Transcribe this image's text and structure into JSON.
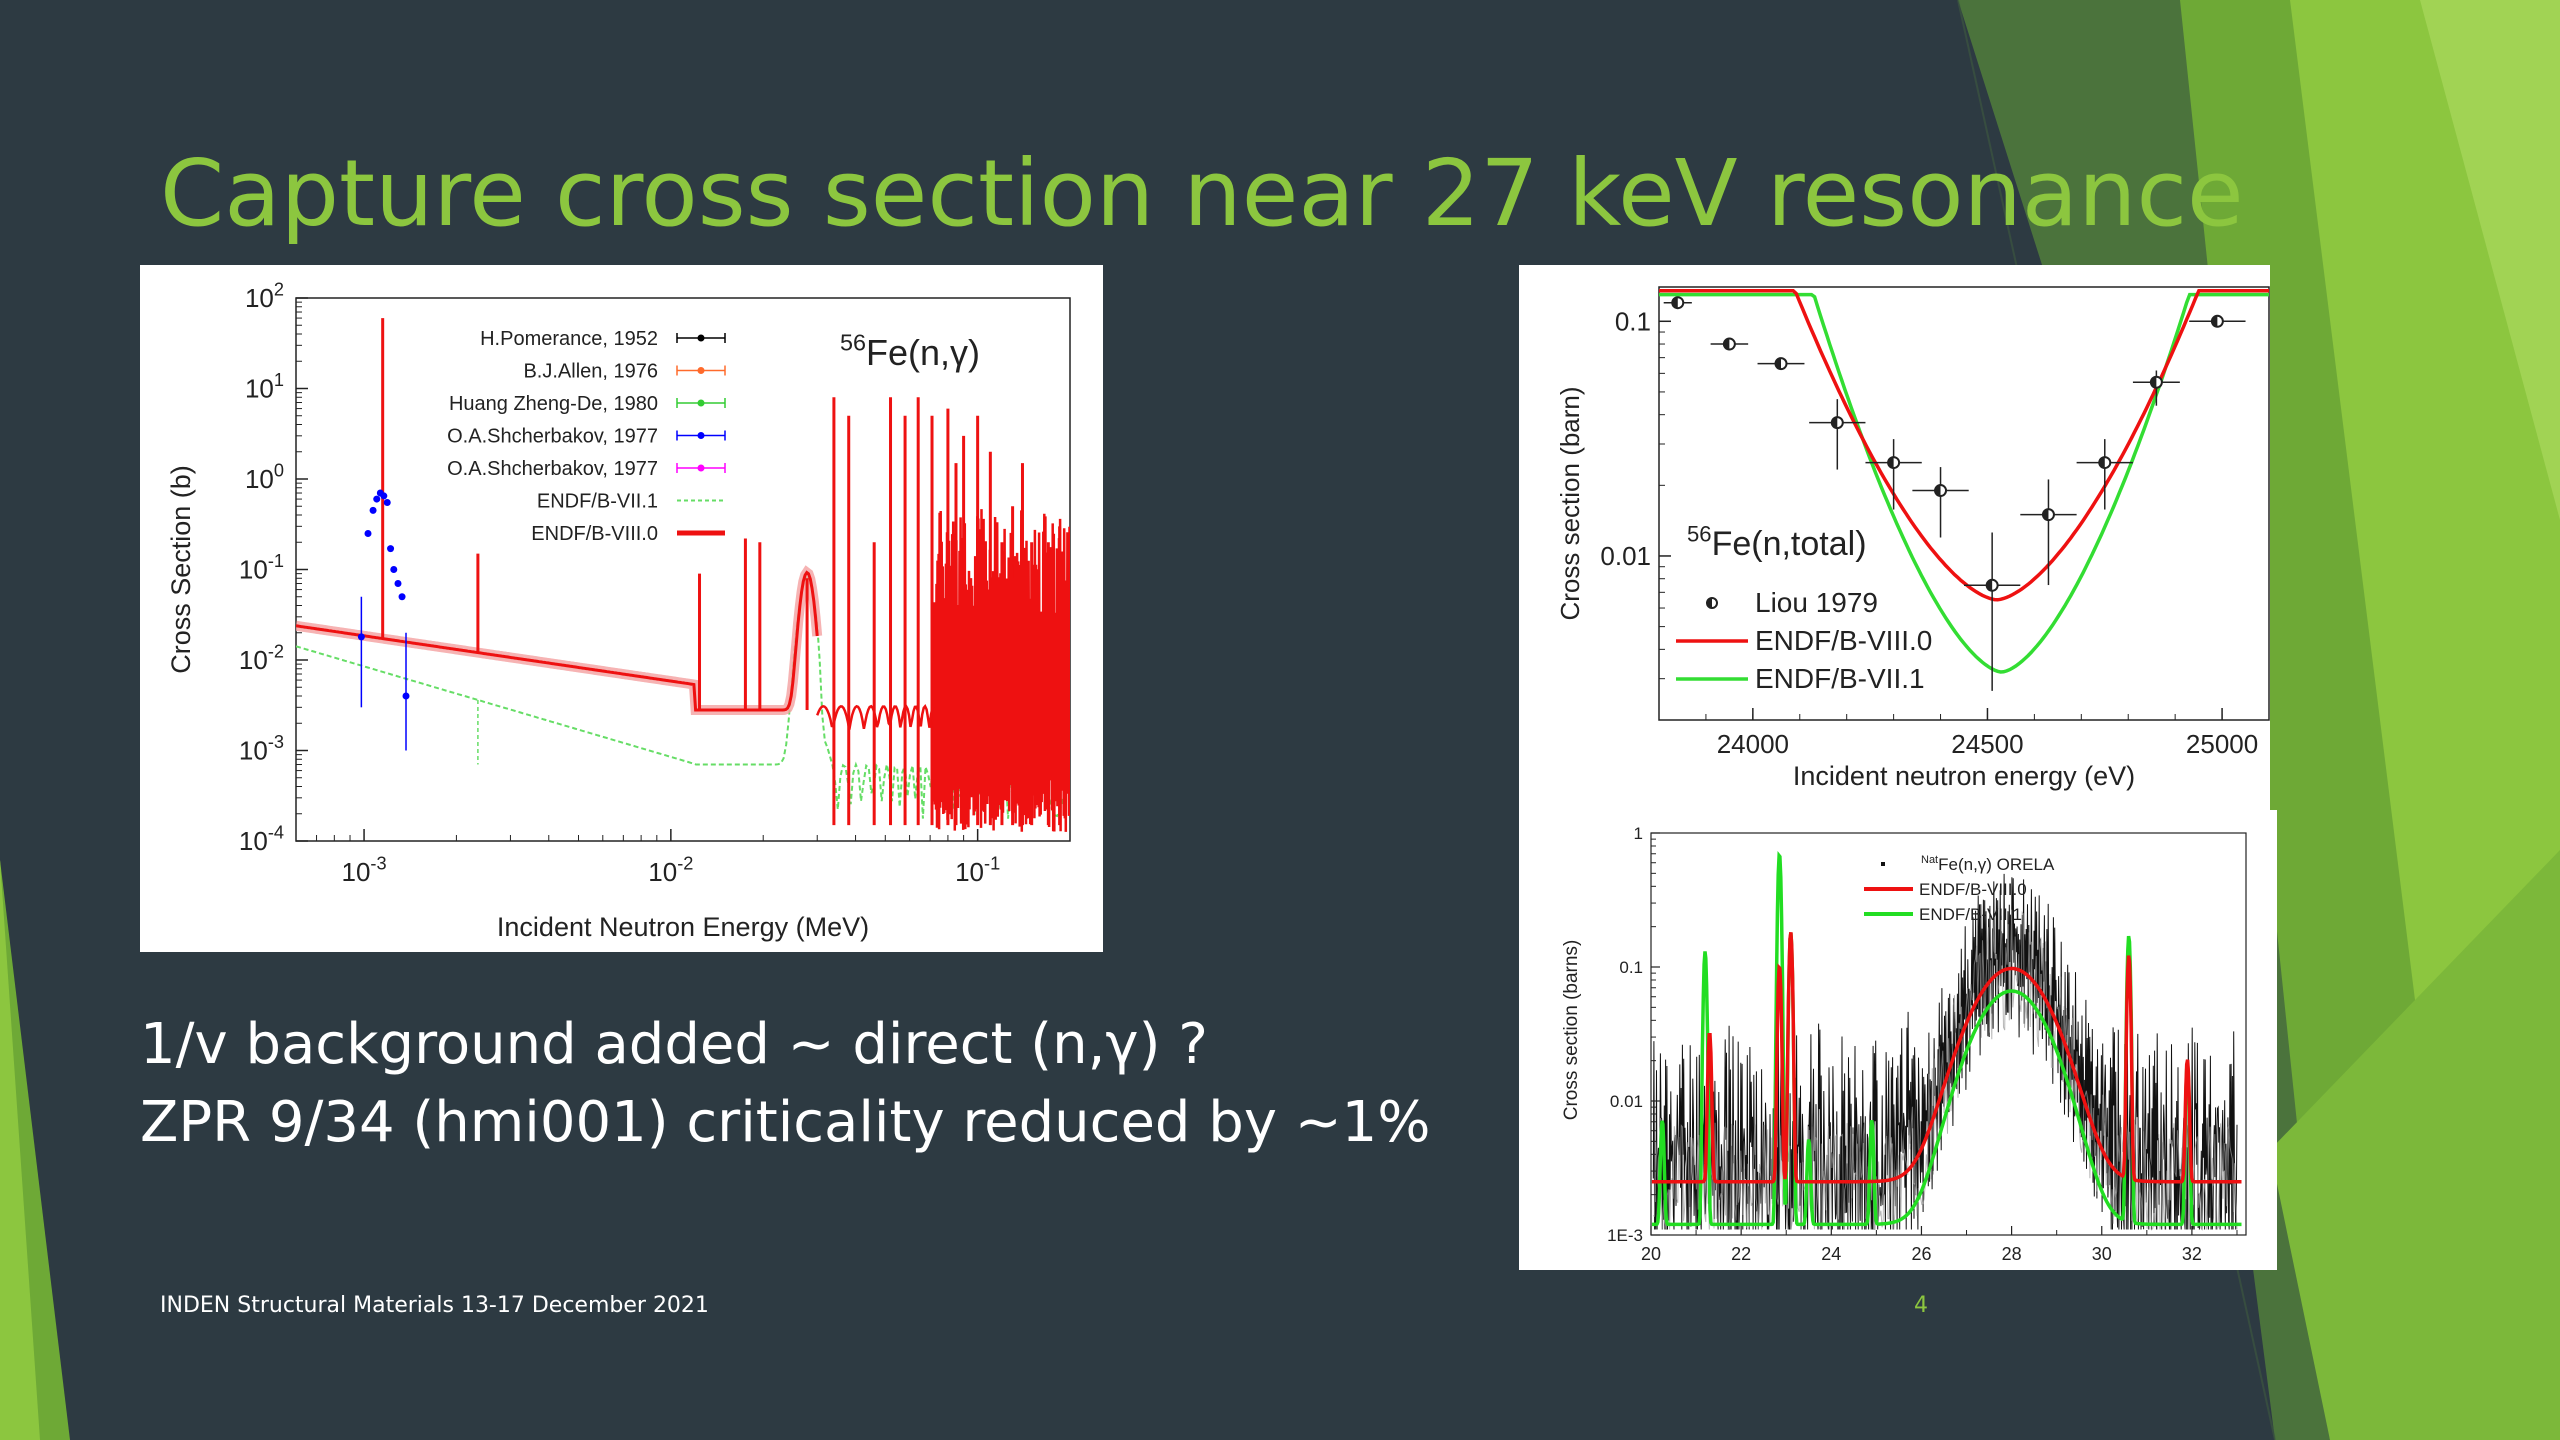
{
  "slide": {
    "title": "Capture cross section near 27 keV resonance",
    "bullets": [
      "1/v background added ~ direct (n,γ) ?",
      "ZPR 9/34 (hmi001) criticality reduced by ~1%"
    ],
    "footer": "INDEN Structural Materials 13-17 December 2021",
    "page_number": "4",
    "colors": {
      "background": "#2d3a42",
      "accent": "#8cc63f",
      "text": "#ffffff"
    }
  },
  "chart_data": [
    {
      "type": "line",
      "reaction_label": "56Fe(n,γ)",
      "xlabel": "Incident Neutron Energy (MeV)",
      "ylabel": "Cross Section (b)",
      "x_scale": "log",
      "y_scale": "log",
      "xlim": [
        0.0006,
        0.2
      ],
      "ylim": [
        0.0001,
        100
      ],
      "x_ticks": [
        {
          "value": 0.001,
          "base": "10",
          "exp": "-3"
        },
        {
          "value": 0.01,
          "base": "10",
          "exp": "-2"
        },
        {
          "value": 0.1,
          "base": "10",
          "exp": "-1"
        }
      ],
      "y_ticks": [
        {
          "value": 100,
          "base": "10",
          "exp": "2"
        },
        {
          "value": 10,
          "base": "10",
          "exp": "1"
        },
        {
          "value": 1,
          "base": "10",
          "exp": "0"
        },
        {
          "value": 0.1,
          "base": "10",
          "exp": "-1"
        },
        {
          "value": 0.01,
          "base": "10",
          "exp": "-2"
        },
        {
          "value": 0.001,
          "base": "10",
          "exp": "-3"
        },
        {
          "value": 0.0001,
          "base": "10",
          "exp": "-4"
        }
      ],
      "legend_position": "top-left",
      "legend": [
        {
          "name": "H.Pomerance, 1952",
          "color": "#000000",
          "kind": "points"
        },
        {
          "name": "B.J.Allen, 1976",
          "color": "#ff6a2b",
          "kind": "points"
        },
        {
          "name": "Huang Zheng-De, 1980",
          "color": "#33cc33",
          "kind": "points"
        },
        {
          "name": "O.A.Shcherbakov, 1977",
          "color": "#0000ff",
          "kind": "points"
        },
        {
          "name": "O.A.Shcherbakov, 1977",
          "color": "#ff00ff",
          "kind": "points"
        },
        {
          "name": "ENDF/B-VII.1",
          "color": "#66dd66",
          "kind": "dashed"
        },
        {
          "name": "ENDF/B-VIII.0",
          "color": "#ee1111",
          "kind": "line"
        }
      ],
      "series": [
        {
          "name": "ENDF/B-VIII.0",
          "color": "#ee1111",
          "background": {
            "x_ref": 0.001,
            "y_ref": 0.0185,
            "slope": -0.5,
            "plateau_x": 0.012,
            "plateau_y": 0.0028
          },
          "resonances": [
            {
              "x": 0.00115,
              "y": 60
            },
            {
              "x": 0.00235,
              "y": 0.15
            },
            {
              "x": 0.0124,
              "y": 0.09
            },
            {
              "x": 0.0175,
              "y": 0.22
            },
            {
              "x": 0.0195,
              "y": 0.2
            },
            {
              "x": 0.0278,
              "y": 0.08
            },
            {
              "x": 0.034,
              "y": 8
            },
            {
              "x": 0.038,
              "y": 5
            },
            {
              "x": 0.046,
              "y": 0.2
            },
            {
              "x": 0.052,
              "y": 8
            },
            {
              "x": 0.058,
              "y": 5
            },
            {
              "x": 0.064,
              "y": 8
            },
            {
              "x": 0.071,
              "y": 5
            },
            {
              "x": 0.08,
              "y": 6
            },
            {
              "x": 0.085,
              "y": 1.5
            },
            {
              "x": 0.09,
              "y": 3
            },
            {
              "x": 0.1,
              "y": 5
            },
            {
              "x": 0.11,
              "y": 2
            },
            {
              "x": 0.12,
              "y": 0.2
            },
            {
              "x": 0.13,
              "y": 0.5
            },
            {
              "x": 0.14,
              "y": 1.5
            },
            {
              "x": 0.15,
              "y": 0.2
            },
            {
              "x": 0.17,
              "y": 0.2
            },
            {
              "x": 0.185,
              "y": 0.3
            }
          ]
        },
        {
          "name": "ENDF/B-VII.1",
          "color": "#66dd66",
          "background": {
            "x_ref": 0.001,
            "y_ref": 0.0085,
            "slope": -1.0,
            "plateau_x": 0.012,
            "plateau_y": 0.0007
          }
        },
        {
          "name": "O.A.Shcherbakov, 1977",
          "color": "#0000ff",
          "points": [
            {
              "x": 0.00098,
              "y": 0.018,
              "lo": 0.003,
              "hi": 0.05
            },
            {
              "x": 0.00103,
              "y": 0.25
            },
            {
              "x": 0.00107,
              "y": 0.45
            },
            {
              "x": 0.0011,
              "y": 0.6
            },
            {
              "x": 0.00113,
              "y": 0.7
            },
            {
              "x": 0.00116,
              "y": 0.65
            },
            {
              "x": 0.00119,
              "y": 0.55
            },
            {
              "x": 0.00122,
              "y": 0.17
            },
            {
              "x": 0.00125,
              "y": 0.1
            },
            {
              "x": 0.00129,
              "y": 0.07
            },
            {
              "x": 0.00133,
              "y": 0.05
            },
            {
              "x": 0.00137,
              "y": 0.004,
              "lo": 0.001,
              "hi": 0.02
            }
          ]
        }
      ]
    },
    {
      "type": "line",
      "reaction_label": "56Fe(n,total)",
      "xlabel": "Incident neutron energy (eV)",
      "ylabel": "Cross section (barn)",
      "y_scale": "log",
      "xlim": [
        23800,
        25100
      ],
      "ylim": [
        0.002,
        0.14
      ],
      "x_ticks": [
        {
          "value": 24000,
          "label": "24000"
        },
        {
          "value": 24500,
          "label": "24500"
        },
        {
          "value": 25000,
          "label": "25000"
        }
      ],
      "y_ticks": [
        {
          "value": 0.1,
          "label": "0.1"
        },
        {
          "value": 0.01,
          "label": "0.01"
        }
      ],
      "legend_position": "bottom-left",
      "legend": [
        {
          "name": "Liou 1979",
          "color": "#000000",
          "kind": "points"
        },
        {
          "name": "ENDF/B-VIII.0",
          "color": "#ee1111",
          "kind": "line"
        },
        {
          "name": "ENDF/B-VII.1",
          "color": "#33dd33",
          "kind": "line"
        }
      ],
      "series": [
        {
          "name": "ENDF/B-VIII.0",
          "color": "#ee1111",
          "dip": {
            "x0": 24520,
            "min": 0.0065,
            "base": 0.135,
            "width": 430
          }
        },
        {
          "name": "ENDF/B-VII.1",
          "color": "#33dd33",
          "dip": {
            "x0": 24530,
            "min": 0.0032,
            "base": 0.13,
            "width": 400
          }
        },
        {
          "name": "Liou 1979",
          "color": "#000000",
          "points": [
            {
              "x": 23840,
              "y": 0.12,
              "dx": 30
            },
            {
              "x": 23950,
              "y": 0.08,
              "dx": 40
            },
            {
              "x": 24060,
              "y": 0.066,
              "dx": 50
            },
            {
              "x": 24180,
              "y": 0.037,
              "dx": 60,
              "dy": 0.2
            },
            {
              "x": 24300,
              "y": 0.025,
              "dx": 60,
              "dy": 0.2
            },
            {
              "x": 24400,
              "y": 0.019,
              "dx": 60,
              "dy": 0.2
            },
            {
              "x": 24510,
              "y": 0.0075,
              "dx": 60,
              "dy": 0.45
            },
            {
              "x": 24630,
              "y": 0.015,
              "dx": 60,
              "dy": 0.3
            },
            {
              "x": 24750,
              "y": 0.025,
              "dx": 60,
              "dy": 0.2
            },
            {
              "x": 24860,
              "y": 0.055,
              "dx": 50,
              "dy": 0.1
            },
            {
              "x": 24990,
              "y": 0.1,
              "dx": 60
            }
          ]
        }
      ]
    },
    {
      "type": "line",
      "legend_position": "top-center",
      "ylabel": "Cross section (barns)",
      "y_scale": "log",
      "xlim": [
        20,
        33.2
      ],
      "ylim": [
        0.001,
        1
      ],
      "x_ticks": [
        20,
        22,
        24,
        26,
        28,
        30,
        32
      ],
      "y_ticks": [
        {
          "value": 1,
          "label": "1"
        },
        {
          "value": 0.1,
          "label": "0.1"
        },
        {
          "value": 0.01,
          "label": "0.01"
        },
        {
          "value": 0.001,
          "label": "1E-3"
        }
      ],
      "legend": [
        {
          "name": "Fe(n,γ) ORELA",
          "sup": "Nat",
          "color": "#000000",
          "kind": "points"
        },
        {
          "name": "ENDF/B-VIII.0",
          "color": "#ee1111",
          "kind": "line"
        },
        {
          "name": "ENDF/B-VII.1",
          "color": "#22dd22",
          "kind": "line"
        }
      ],
      "series": [
        {
          "name": "ENDF/B-VIII.0",
          "color": "#ee1111",
          "peak": {
            "x0": 28,
            "max": 0.095,
            "width": 0.75,
            "floor": 0.0025
          },
          "resonances": [
            {
              "x": 21.3,
              "y": 0.03
            },
            {
              "x": 22.85,
              "y": 0.1
            },
            {
              "x": 23.1,
              "y": 0.18
            },
            {
              "x": 30.6,
              "y": 0.12
            },
            {
              "x": 31.9,
              "y": 0.018
            }
          ]
        },
        {
          "name": "ENDF/B-VII.1",
          "color": "#22dd22",
          "peak": {
            "x0": 28,
            "max": 0.065,
            "width": 0.72,
            "floor": 0.0012
          },
          "resonances": [
            {
              "x": 20.25,
              "y": 0.006
            },
            {
              "x": 21.2,
              "y": 0.13
            },
            {
              "x": 22.85,
              "y": 0.7
            },
            {
              "x": 23.1,
              "y": 0.18
            },
            {
              "x": 23.5,
              "y": 0.004
            },
            {
              "x": 24.9,
              "y": 0.006
            },
            {
              "x": 30.6,
              "y": 0.17
            },
            {
              "x": 31.9,
              "y": 0.018
            }
          ]
        },
        {
          "name": "Fe(n,γ) ORELA",
          "color": "#000000",
          "noise_band": {
            "from": 20,
            "to": 33,
            "around": "ENDF/B-VIII.0"
          }
        }
      ]
    }
  ]
}
